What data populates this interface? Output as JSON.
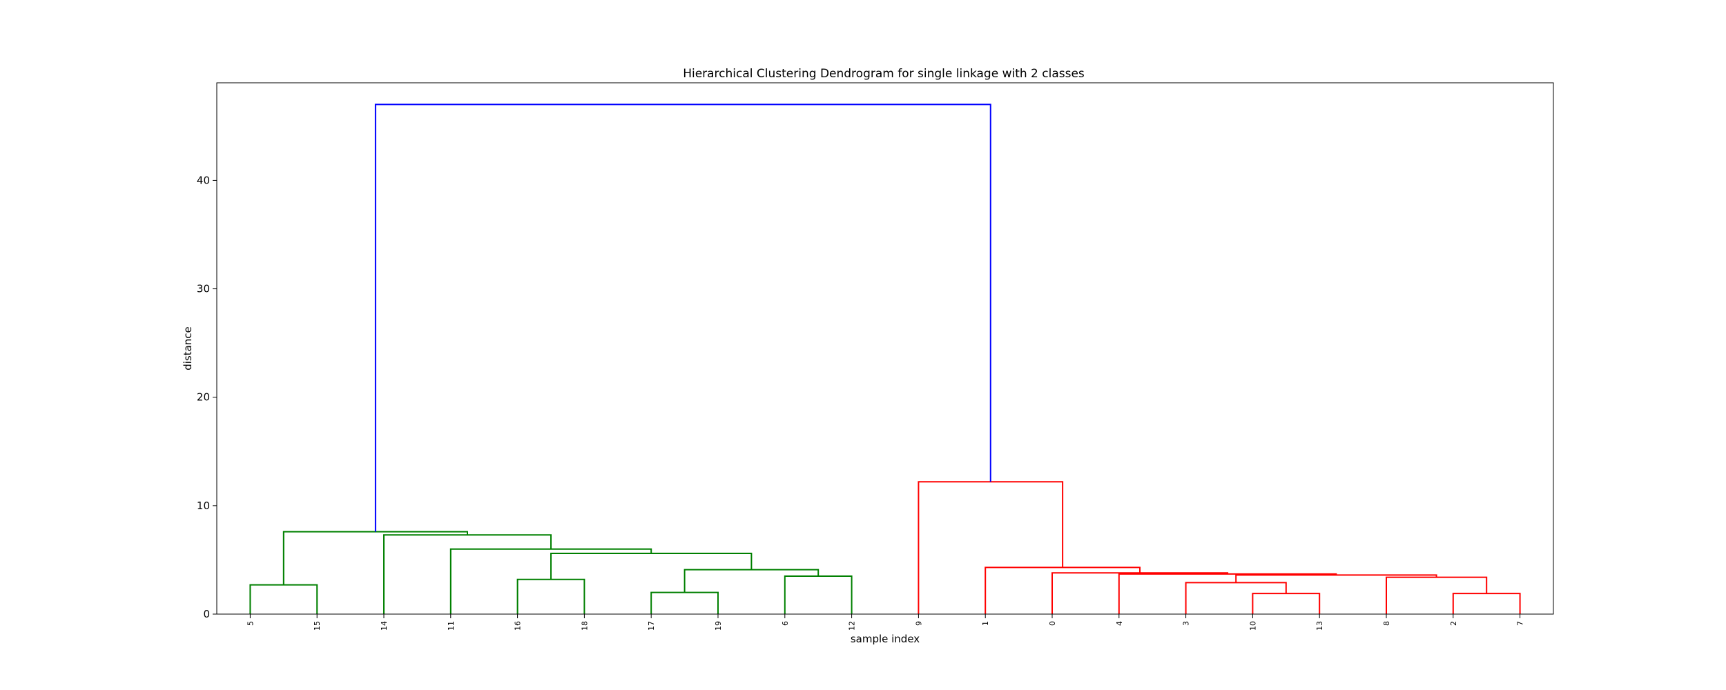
{
  "chart_data": {
    "type": "dendrogram",
    "title": "Hierarchical Clustering Dendrogram for single linkage with 2 classes",
    "xlabel": "sample index",
    "ylabel": "distance",
    "ylim": [
      0,
      49
    ],
    "yticks": [
      0,
      10,
      20,
      30,
      40
    ],
    "leaves": [
      "5",
      "15",
      "14",
      "11",
      "16",
      "18",
      "17",
      "19",
      "6",
      "12",
      "9",
      "1",
      "0",
      "4",
      "3",
      "10",
      "13",
      "8",
      "2",
      "7"
    ],
    "colors": {
      "green": "#008000",
      "red": "#ff0000",
      "blue": "#0000ff"
    },
    "links": [
      {
        "left": 0,
        "right": 1,
        "height": 2.7,
        "color": "green"
      },
      {
        "left": 6,
        "right": 7,
        "height": 2.0,
        "color": "green"
      },
      {
        "left": 4,
        "right": 5,
        "height": 3.2,
        "color": "green"
      },
      {
        "left": 8,
        "right": 9,
        "height": 3.5,
        "color": "green"
      },
      {
        "left": "n1",
        "right": "n3",
        "height": 4.1,
        "color": "green"
      },
      {
        "left": "n4",
        "right": "n0x",
        "height": 0,
        "color": "green"
      }
    ],
    "tree": {
      "green": [
        {
          "id": "a",
          "l": 0,
          "r": 1,
          "h": 2.7
        },
        {
          "id": "b",
          "l": 4,
          "r": 5,
          "h": 3.2
        },
        {
          "id": "c",
          "l": 6,
          "r": 7,
          "h": 2.0
        },
        {
          "id": "d",
          "l": 8,
          "r": 9,
          "h": 3.5
        },
        {
          "id": "e",
          "l": "c",
          "r": "d",
          "h": 4.1
        },
        {
          "id": "f",
          "l": "b",
          "r": "e",
          "h": 5.6
        },
        {
          "id": "g",
          "l": 3,
          "r": "f",
          "h": 6.0
        },
        {
          "id": "h",
          "l": 2,
          "r": "g",
          "h": 7.3
        },
        {
          "id": "i",
          "l": "a",
          "r": "h",
          "h": 7.6
        }
      ],
      "red": [
        {
          "id": "j",
          "l": 15,
          "r": 16,
          "h": 1.9
        },
        {
          "id": "k",
          "l": 14,
          "r": "j",
          "h": 2.9
        },
        {
          "id": "m",
          "l": 18,
          "r": 19,
          "h": 1.9
        },
        {
          "id": "n",
          "l": 17,
          "r": "m",
          "h": 3.4
        },
        {
          "id": "o",
          "l": "k",
          "r": "n",
          "h": 3.6
        },
        {
          "id": "p",
          "l": 13,
          "r": "o",
          "h": 3.7
        },
        {
          "id": "q",
          "l": 12,
          "r": "p",
          "h": 3.8
        },
        {
          "id": "s",
          "l": 11,
          "r": "q",
          "h": 4.3
        },
        {
          "id": "t",
          "l": 10,
          "r": "s",
          "h": 12.2
        }
      ],
      "blue": [
        {
          "id": "u",
          "l": "i",
          "r": "t",
          "h": 47.0
        }
      ]
    }
  }
}
